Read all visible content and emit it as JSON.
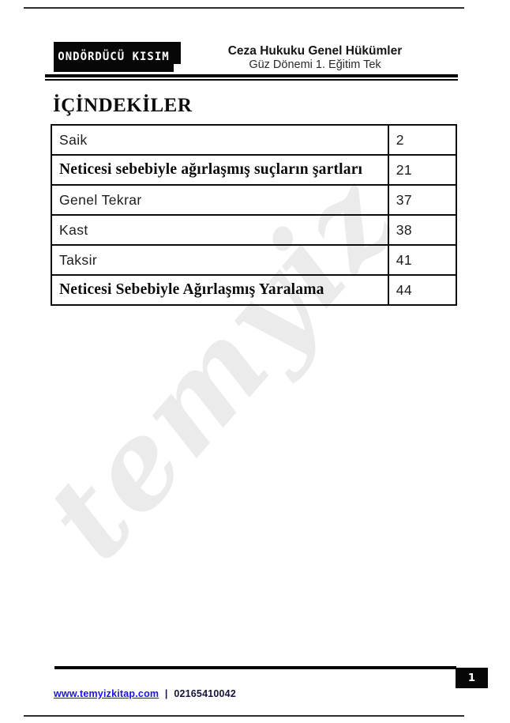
{
  "header": {
    "kicker": "ONDÖRDÜCÜ KISIM",
    "title": "Ceza Hukuku Genel Hükümler",
    "subtitle": "Güz Dönemi 1. Eğitim Tek"
  },
  "toc": {
    "heading": "İÇİNDEKİLER",
    "rows": [
      {
        "title": "Saik",
        "page": "2",
        "style": "sans"
      },
      {
        "title": "Neticesi sebebiyle ağırlaşmış suçların şartları",
        "page": "21",
        "style": "serif-bold"
      },
      {
        "title": "Genel Tekrar",
        "page": "37",
        "style": "sans"
      },
      {
        "title": "Kast",
        "page": "38",
        "style": "sans"
      },
      {
        "title": "Taksir",
        "page": "41",
        "style": "sans"
      },
      {
        "title": "Neticesi Sebebiyle Ağırlaşmış Yaralama",
        "page": "44",
        "style": "serif-bold"
      }
    ]
  },
  "watermark": {
    "text": "temyiz"
  },
  "footer": {
    "page_number": "1",
    "website": "www.temyizkitap.com",
    "separator": "|",
    "phone": "02165410042"
  },
  "colors": {
    "ink": "#0d0d0d",
    "link_blue": "#1d12ee",
    "watermark_gray": "#ebebeb"
  }
}
